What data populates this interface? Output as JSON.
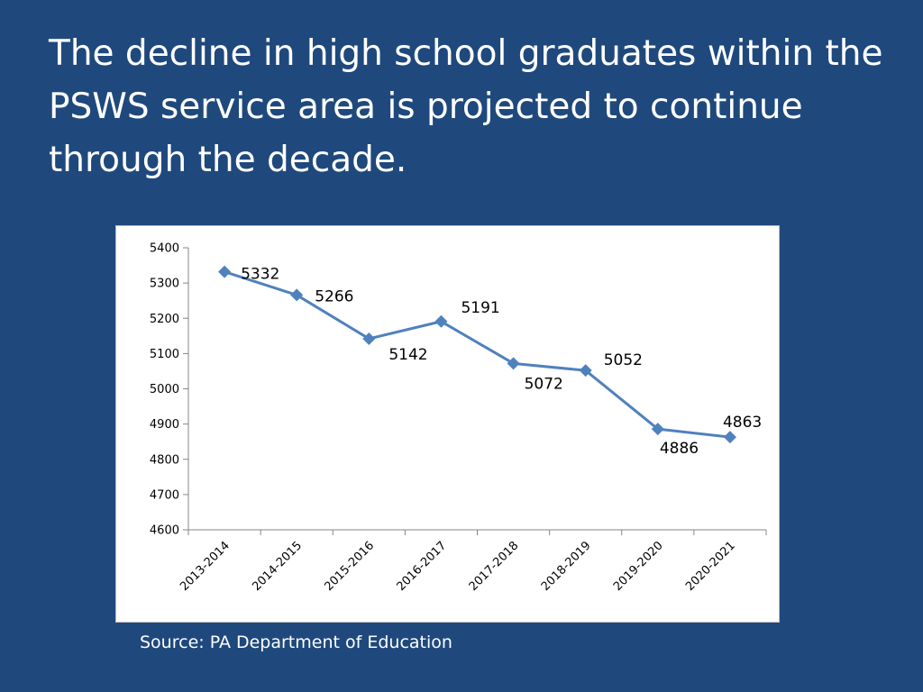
{
  "slide": {
    "title": "The decline in high school graduates within the PSWS service area is projected to continue through the decade.",
    "source": "Source: PA Department of Education",
    "background_color": "#1f497d"
  },
  "chart_data": {
    "type": "line",
    "title": "",
    "xlabel": "",
    "ylabel": "",
    "categories": [
      "2013-2014",
      "2014-2015",
      "2015-2016",
      "2016-2017",
      "2017-2018",
      "2018-2019",
      "2019-2020",
      "2020-2021"
    ],
    "series": [
      {
        "values": [
          5332,
          5266,
          5142,
          5191,
          5072,
          5052,
          4886,
          4863
        ],
        "color": "#4f81bd",
        "marker": "diamond"
      }
    ],
    "data_labels": [
      "5332",
      "5266",
      "5142",
      "5191",
      "5072",
      "5052",
      "4886",
      "4863"
    ],
    "ylim": [
      4600,
      5400
    ],
    "yticks": [
      4600,
      4700,
      4800,
      4900,
      5000,
      5100,
      5200,
      5300,
      5400
    ],
    "ytick_labels": [
      "4600",
      "4700",
      "4800",
      "4900",
      "5000",
      "5100",
      "5200",
      "5300",
      "5400"
    ],
    "grid": false,
    "legend": "none",
    "x_tick_rotation": "diagonal"
  }
}
